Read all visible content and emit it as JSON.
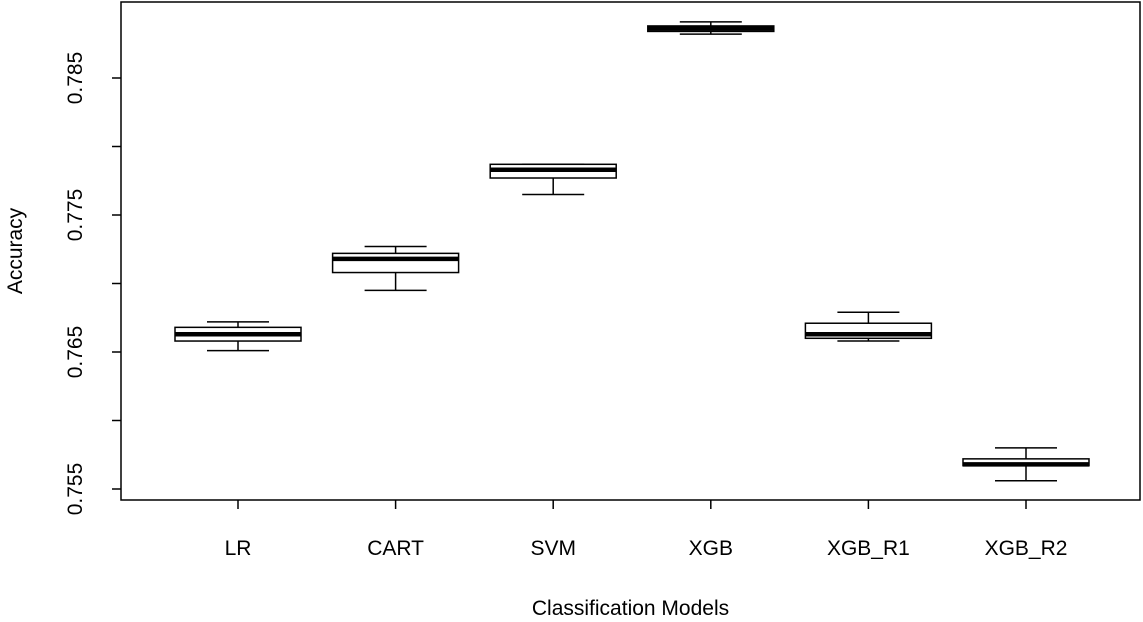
{
  "chart_data": {
    "type": "box",
    "title": "",
    "xlabel": "Classification Models",
    "ylabel": "Accuracy",
    "ylim": [
      0.7545,
      0.7895
    ],
    "y_ticks": [
      0.755,
      0.76,
      0.765,
      0.77,
      0.775,
      0.78,
      0.785
    ],
    "y_tick_labels": [
      "0.755",
      "",
      "0.765",
      "",
      "0.775",
      "",
      "0.785"
    ],
    "grid": false,
    "categories": [
      "LR",
      "CART",
      "SVM",
      "XGB",
      "XGB_R1",
      "XGB_R2"
    ],
    "boxes": [
      {
        "label": "LR",
        "min": 0.7651,
        "q1": 0.7658,
        "median": 0.7663,
        "q3": 0.7668,
        "max": 0.7672
      },
      {
        "label": "CART",
        "min": 0.7695,
        "q1": 0.7708,
        "median": 0.7718,
        "q3": 0.7722,
        "max": 0.7727
      },
      {
        "label": "SVM",
        "min": 0.7765,
        "q1": 0.7777,
        "median": 0.7783,
        "q3": 0.7787,
        "max": 0.7787
      },
      {
        "label": "XGB",
        "min": 0.7882,
        "q1": 0.7884,
        "median": 0.7886,
        "q3": 0.7888,
        "max": 0.7891
      },
      {
        "label": "XGB_R1",
        "min": 0.7658,
        "q1": 0.766,
        "median": 0.7663,
        "q3": 0.7671,
        "max": 0.7679
      },
      {
        "label": "XGB_R2",
        "min": 0.7556,
        "q1": 0.7567,
        "median": 0.7568,
        "q3": 0.7572,
        "max": 0.758
      }
    ]
  }
}
